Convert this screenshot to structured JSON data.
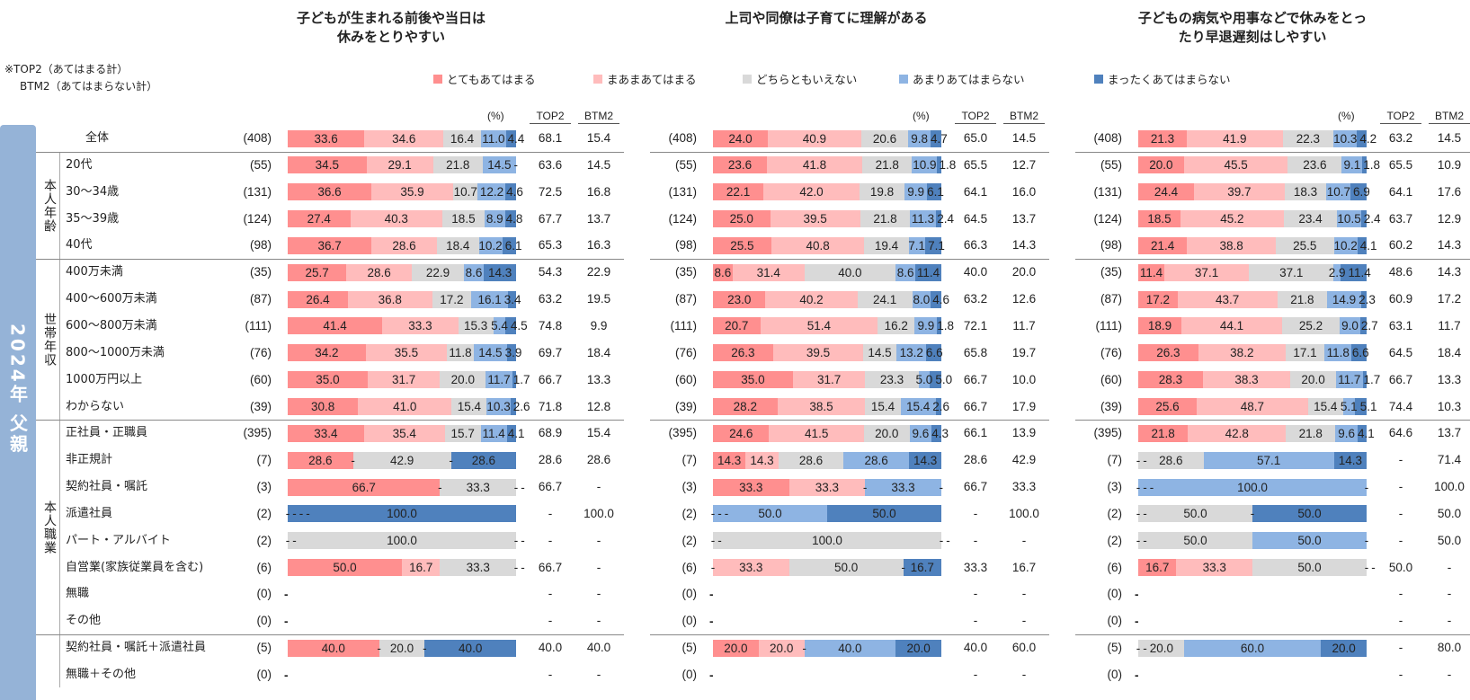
{
  "note": [
    "※TOP2（あてはまる計）",
    "BTM2（あてはまらない計）"
  ],
  "legend": [
    {
      "label": "とてもあてはまる",
      "color": "#ff8f8f"
    },
    {
      "label": "まあまあてはまる",
      "color": "#ffbcbc"
    },
    {
      "label": "どちらともいえない",
      "color": "#d9d9d9"
    },
    {
      "label": "あまりあてはまらない",
      "color": "#8eb4e3"
    },
    {
      "label": "まったくあてはまらない",
      "color": "#4f81bd"
    }
  ],
  "band_label": "2024年 父親",
  "groups": [
    "本人年齢",
    "世帯年収",
    "本人職業"
  ],
  "column_headers": {
    "pct": "(%)",
    "top2": "TOP2",
    "btm2": "BTM2"
  },
  "row_labels": [
    "全体",
    "20代",
    "30～34歳",
    "35～39歳",
    "40代",
    "400万未満",
    "400～600万未満",
    "600～800万未満",
    "800～1000万未満",
    "1000万円以上",
    "わからない",
    "正社員・正職員",
    "非正規計",
    "契約社員・嘱託",
    "派遣社員",
    "パート・アルバイト",
    "自営業(家族従業員を含む)",
    "無職",
    "その他",
    "契約社員・嘱託＋派遣社員",
    "無職＋その他"
  ],
  "chart_data": [
    {
      "type": "bar",
      "stacked": "horizontal-100",
      "title": "子どもが生まれる前後や当日は\n休みをとりやすい",
      "xlim": [
        0,
        100
      ],
      "rows": [
        {
          "n": "(408)",
          "values": [
            33.6,
            34.6,
            16.4,
            11.0,
            4.4
          ],
          "top2": "68.1",
          "btm2": "15.4"
        },
        {
          "n": "(55)",
          "values": [
            34.5,
            29.1,
            21.8,
            14.5,
            null
          ],
          "top2": "63.6",
          "btm2": "14.5"
        },
        {
          "n": "(131)",
          "values": [
            36.6,
            35.9,
            10.7,
            12.2,
            4.6
          ],
          "top2": "72.5",
          "btm2": "16.8"
        },
        {
          "n": "(124)",
          "values": [
            27.4,
            40.3,
            18.5,
            8.9,
            4.8
          ],
          "top2": "67.7",
          "btm2": "13.7"
        },
        {
          "n": "(98)",
          "values": [
            36.7,
            28.6,
            18.4,
            10.2,
            6.1
          ],
          "top2": "65.3",
          "btm2": "16.3"
        },
        {
          "n": "(35)",
          "values": [
            25.7,
            28.6,
            22.9,
            8.6,
            14.3
          ],
          "top2": "54.3",
          "btm2": "22.9"
        },
        {
          "n": "(87)",
          "values": [
            26.4,
            36.8,
            17.2,
            16.1,
            3.4
          ],
          "top2": "63.2",
          "btm2": "19.5"
        },
        {
          "n": "(111)",
          "values": [
            41.4,
            33.3,
            15.3,
            5.4,
            4.5
          ],
          "top2": "74.8",
          "btm2": "9.9"
        },
        {
          "n": "(76)",
          "values": [
            34.2,
            35.5,
            11.8,
            14.5,
            3.9
          ],
          "top2": "69.7",
          "btm2": "18.4"
        },
        {
          "n": "(60)",
          "values": [
            35.0,
            31.7,
            20.0,
            11.7,
            1.7
          ],
          "top2": "66.7",
          "btm2": "13.3"
        },
        {
          "n": "(39)",
          "values": [
            30.8,
            41.0,
            15.4,
            10.3,
            2.6
          ],
          "top2": "71.8",
          "btm2": "12.8"
        },
        {
          "n": "(395)",
          "values": [
            33.4,
            35.4,
            15.7,
            11.4,
            4.1
          ],
          "top2": "68.9",
          "btm2": "15.4"
        },
        {
          "n": "(7)",
          "values": [
            28.6,
            null,
            42.9,
            null,
            28.6
          ],
          "top2": "28.6",
          "btm2": "28.6"
        },
        {
          "n": "(3)",
          "values": [
            66.7,
            null,
            33.3,
            null,
            null
          ],
          "top2": "66.7",
          "btm2": "-"
        },
        {
          "n": "(2)",
          "values": [
            null,
            null,
            null,
            null,
            100.0
          ],
          "top2": "-",
          "btm2": "100.0"
        },
        {
          "n": "(2)",
          "values": [
            null,
            null,
            100.0,
            null,
            null
          ],
          "top2": "-",
          "btm2": "-"
        },
        {
          "n": "(6)",
          "values": [
            50.0,
            16.7,
            33.3,
            null,
            null
          ],
          "top2": "66.7",
          "btm2": "-"
        },
        {
          "n": "(0)",
          "values": [
            null,
            null,
            null,
            null,
            null
          ],
          "top2": "-",
          "btm2": "-"
        },
        {
          "n": "(0)",
          "values": [
            null,
            null,
            null,
            null,
            null
          ],
          "top2": "-",
          "btm2": "-"
        },
        {
          "n": "(5)",
          "values": [
            40.0,
            null,
            20.0,
            null,
            40.0
          ],
          "top2": "40.0",
          "btm2": "40.0"
        },
        {
          "n": "(0)",
          "values": [
            null,
            null,
            null,
            null,
            null
          ],
          "top2": "-",
          "btm2": "-"
        }
      ]
    },
    {
      "type": "bar",
      "stacked": "horizontal-100",
      "title": "上司や同僚は子育てに理解がある",
      "xlim": [
        0,
        100
      ],
      "rows": [
        {
          "n": "(408)",
          "values": [
            24.0,
            40.9,
            20.6,
            9.8,
            4.7
          ],
          "top2": "65.0",
          "btm2": "14.5"
        },
        {
          "n": "(55)",
          "values": [
            23.6,
            41.8,
            21.8,
            10.9,
            1.8
          ],
          "top2": "65.5",
          "btm2": "12.7"
        },
        {
          "n": "(131)",
          "values": [
            22.1,
            42.0,
            19.8,
            9.9,
            6.1
          ],
          "top2": "64.1",
          "btm2": "16.0"
        },
        {
          "n": "(124)",
          "values": [
            25.0,
            39.5,
            21.8,
            11.3,
            2.4
          ],
          "top2": "64.5",
          "btm2": "13.7"
        },
        {
          "n": "(98)",
          "values": [
            25.5,
            40.8,
            19.4,
            7.1,
            7.1
          ],
          "top2": "66.3",
          "btm2": "14.3"
        },
        {
          "n": "(35)",
          "values": [
            8.6,
            31.4,
            40.0,
            8.6,
            11.4
          ],
          "top2": "40.0",
          "btm2": "20.0"
        },
        {
          "n": "(87)",
          "values": [
            23.0,
            40.2,
            24.1,
            8.0,
            4.6
          ],
          "top2": "63.2",
          "btm2": "12.6"
        },
        {
          "n": "(111)",
          "values": [
            20.7,
            51.4,
            16.2,
            9.9,
            1.8
          ],
          "top2": "72.1",
          "btm2": "11.7"
        },
        {
          "n": "(76)",
          "values": [
            26.3,
            39.5,
            14.5,
            13.2,
            6.6
          ],
          "top2": "65.8",
          "btm2": "19.7"
        },
        {
          "n": "(60)",
          "values": [
            35.0,
            31.7,
            23.3,
            5.0,
            5.0
          ],
          "top2": "66.7",
          "btm2": "10.0"
        },
        {
          "n": "(39)",
          "values": [
            28.2,
            38.5,
            15.4,
            15.4,
            2.6
          ],
          "top2": "66.7",
          "btm2": "17.9"
        },
        {
          "n": "(395)",
          "values": [
            24.6,
            41.5,
            20.0,
            9.6,
            4.3
          ],
          "top2": "66.1",
          "btm2": "13.9"
        },
        {
          "n": "(7)",
          "values": [
            14.3,
            14.3,
            28.6,
            28.6,
            14.3
          ],
          "top2": "28.6",
          "btm2": "42.9"
        },
        {
          "n": "(3)",
          "values": [
            33.3,
            33.3,
            null,
            33.3,
            null
          ],
          "top2": "66.7",
          "btm2": "33.3"
        },
        {
          "n": "(2)",
          "values": [
            null,
            null,
            null,
            50.0,
            50.0
          ],
          "top2": "-",
          "btm2": "100.0"
        },
        {
          "n": "(2)",
          "values": [
            null,
            null,
            100.0,
            null,
            null
          ],
          "top2": "-",
          "btm2": "-"
        },
        {
          "n": "(6)",
          "values": [
            null,
            33.3,
            50.0,
            null,
            16.7
          ],
          "top2": "33.3",
          "btm2": "16.7"
        },
        {
          "n": "(0)",
          "values": [
            null,
            null,
            null,
            null,
            null
          ],
          "top2": "-",
          "btm2": "-"
        },
        {
          "n": "(0)",
          "values": [
            null,
            null,
            null,
            null,
            null
          ],
          "top2": "-",
          "btm2": "-"
        },
        {
          "n": "(5)",
          "values": [
            20.0,
            20.0,
            null,
            40.0,
            20.0
          ],
          "top2": "40.0",
          "btm2": "60.0"
        },
        {
          "n": "(0)",
          "values": [
            null,
            null,
            null,
            null,
            null
          ],
          "top2": "-",
          "btm2": "-"
        }
      ]
    },
    {
      "type": "bar",
      "stacked": "horizontal-100",
      "title": "子どもの病気や用事などで休みをとっ\nたり早退遅刻はしやすい",
      "xlim": [
        0,
        100
      ],
      "rows": [
        {
          "n": "(408)",
          "values": [
            21.3,
            41.9,
            22.3,
            10.3,
            4.2
          ],
          "top2": "63.2",
          "btm2": "14.5"
        },
        {
          "n": "(55)",
          "values": [
            20.0,
            45.5,
            23.6,
            9.1,
            1.8
          ],
          "top2": "65.5",
          "btm2": "10.9"
        },
        {
          "n": "(131)",
          "values": [
            24.4,
            39.7,
            18.3,
            10.7,
            6.9
          ],
          "top2": "64.1",
          "btm2": "17.6"
        },
        {
          "n": "(124)",
          "values": [
            18.5,
            45.2,
            23.4,
            10.5,
            2.4
          ],
          "top2": "63.7",
          "btm2": "12.9"
        },
        {
          "n": "(98)",
          "values": [
            21.4,
            38.8,
            25.5,
            10.2,
            4.1
          ],
          "top2": "60.2",
          "btm2": "14.3"
        },
        {
          "n": "(35)",
          "values": [
            11.4,
            37.1,
            37.1,
            2.9,
            11.4
          ],
          "top2": "48.6",
          "btm2": "14.3"
        },
        {
          "n": "(87)",
          "values": [
            17.2,
            43.7,
            21.8,
            14.9,
            2.3
          ],
          "top2": "60.9",
          "btm2": "17.2"
        },
        {
          "n": "(111)",
          "values": [
            18.9,
            44.1,
            25.2,
            9.0,
            2.7
          ],
          "top2": "63.1",
          "btm2": "11.7"
        },
        {
          "n": "(76)",
          "values": [
            26.3,
            38.2,
            17.1,
            11.8,
            6.6
          ],
          "top2": "64.5",
          "btm2": "18.4"
        },
        {
          "n": "(60)",
          "values": [
            28.3,
            38.3,
            20.0,
            11.7,
            1.7
          ],
          "top2": "66.7",
          "btm2": "13.3"
        },
        {
          "n": "(39)",
          "values": [
            25.6,
            48.7,
            15.4,
            5.1,
            5.1
          ],
          "top2": "74.4",
          "btm2": "10.3"
        },
        {
          "n": "(395)",
          "values": [
            21.8,
            42.8,
            21.8,
            9.6,
            4.1
          ],
          "top2": "64.6",
          "btm2": "13.7"
        },
        {
          "n": "(7)",
          "values": [
            null,
            null,
            28.6,
            57.1,
            14.3
          ],
          "top2": "-",
          "btm2": "71.4"
        },
        {
          "n": "(3)",
          "values": [
            null,
            null,
            null,
            100.0,
            null
          ],
          "top2": "-",
          "btm2": "100.0"
        },
        {
          "n": "(2)",
          "values": [
            null,
            null,
            50.0,
            null,
            50.0
          ],
          "top2": "-",
          "btm2": "50.0"
        },
        {
          "n": "(2)",
          "values": [
            null,
            null,
            50.0,
            50.0,
            null
          ],
          "top2": "-",
          "btm2": "50.0"
        },
        {
          "n": "(6)",
          "values": [
            16.7,
            33.3,
            50.0,
            null,
            null
          ],
          "top2": "50.0",
          "btm2": "-"
        },
        {
          "n": "(0)",
          "values": [
            null,
            null,
            null,
            null,
            null
          ],
          "top2": "-",
          "btm2": "-"
        },
        {
          "n": "(0)",
          "values": [
            null,
            null,
            null,
            null,
            null
          ],
          "top2": "-",
          "btm2": "-"
        },
        {
          "n": "(5)",
          "values": [
            null,
            null,
            20.0,
            60.0,
            20.0
          ],
          "top2": "-",
          "btm2": "80.0"
        },
        {
          "n": "(0)",
          "values": [
            null,
            null,
            null,
            null,
            null
          ],
          "top2": "-",
          "btm2": "-"
        }
      ]
    }
  ]
}
